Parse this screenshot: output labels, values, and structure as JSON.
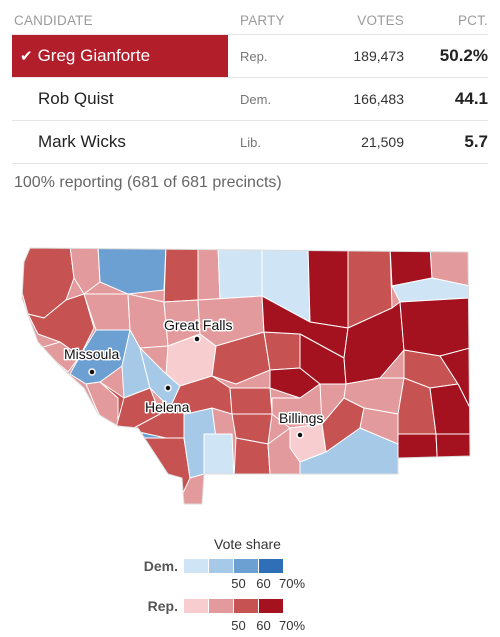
{
  "table": {
    "headers": {
      "candidate": "CANDIDATE",
      "party": "PARTY",
      "votes": "VOTES",
      "pct": "PCT."
    },
    "rows": [
      {
        "candidate": "Greg Gianforte",
        "party": "Rep.",
        "votes": "189,473",
        "pct": "50.2%",
        "winner": true
      },
      {
        "candidate": "Rob Quist",
        "party": "Dem.",
        "votes": "166,483",
        "pct": "44.1",
        "winner": false
      },
      {
        "candidate": "Mark Wicks",
        "party": "Lib.",
        "votes": "21,509",
        "pct": "5.7",
        "winner": false
      }
    ],
    "winner_color": "#b31e2b",
    "check_icon": "checkmark-icon"
  },
  "reporting": "100% reporting (681 of 681 precincts)",
  "map": {
    "cities": [
      "Great Falls",
      "Missoula",
      "Helena",
      "Billings"
    ]
  },
  "legend": {
    "title": "Vote share",
    "dem": {
      "label": "Dem.",
      "colors": [
        "#cfe4f5",
        "#a6c9e8",
        "#6c9fd2",
        "#2f6fb7"
      ]
    },
    "rep": {
      "label": "Rep.",
      "colors": [
        "#f7cdd0",
        "#e39a9c",
        "#c65252",
        "#a4121f"
      ]
    },
    "ticks": [
      "50",
      "60",
      "70%"
    ]
  }
}
